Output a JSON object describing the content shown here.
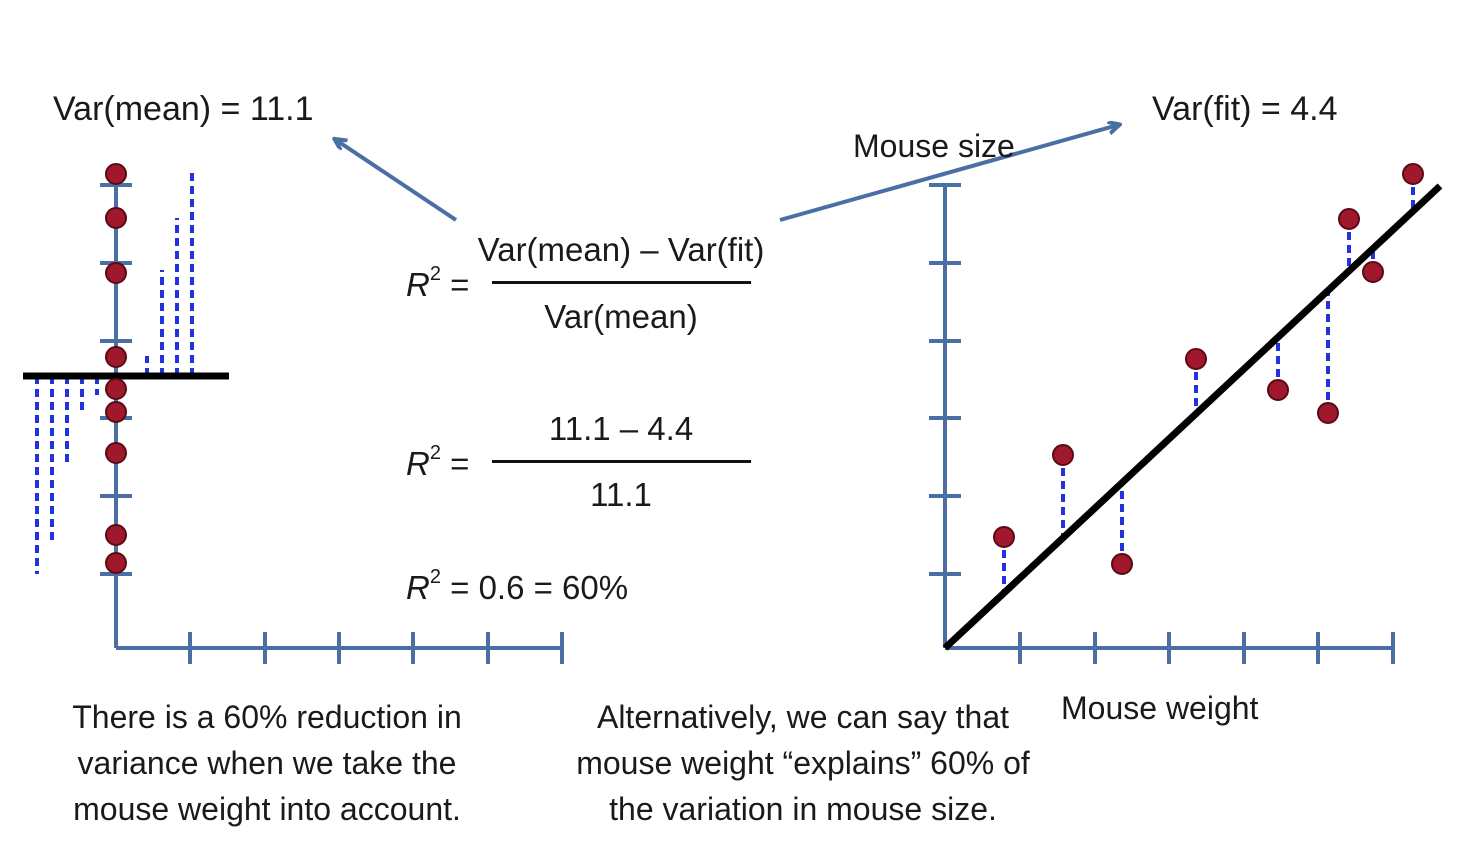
{
  "labels": {
    "var_mean": "Var(mean) = 11.1",
    "var_fit": "Var(fit) = 4.4",
    "mouse_size": "Mouse size",
    "mouse_weight": "Mouse weight"
  },
  "equations": {
    "r2_symbol": "R",
    "r2_sup": "2",
    "equals": " =",
    "eq1_numerator": "Var(mean) – Var(fit)",
    "eq1_denominator": "Var(mean)",
    "eq2_numerator": "11.1 – 4.4",
    "eq2_denominator": "11.1",
    "eq3_rest": " = 0.6 = 60%"
  },
  "text": {
    "left_line1": "There is a 60% reduction in",
    "left_line2": "variance when we take the",
    "left_line3": "mouse weight into account.",
    "center_line1": "Alternatively, we can say that",
    "center_line2": "mouse weight “explains” 60% of",
    "center_line3": "the variation in mouse size."
  },
  "colors": {
    "axis": "#4a6fa5",
    "point_fill": "#a0182b",
    "point_stroke": "#5a0a14",
    "residual": "#2233dd",
    "fit_line": "#000000",
    "arrow": "#4a6fa5"
  }
}
